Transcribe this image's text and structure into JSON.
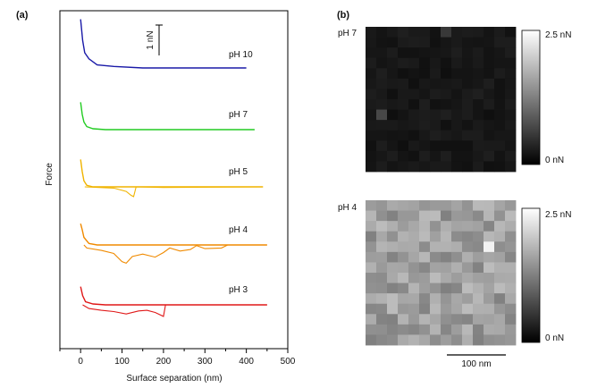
{
  "panel_a": {
    "panel_label": "(a)",
    "scale_bar_label": "1 nN"
  },
  "panel_b": {
    "panel_label": "(b)",
    "scale_bar_label": "100 nm",
    "maps": [
      {
        "label": "pH 7",
        "colorbar_max": "2.5 nN",
        "colorbar_min": "0 nN",
        "mean_level": 0.09,
        "spread": 0.03,
        "bright_pixels": [
          [
            1,
            8,
            0.28
          ],
          [
            7,
            0,
            0.22
          ]
        ]
      },
      {
        "label": "pH 4",
        "colorbar_max": "2.5 nN",
        "colorbar_min": "0 nN",
        "mean_level": 0.62,
        "spread": 0.12,
        "bright_pixels": [
          [
            11,
            4,
            0.95
          ]
        ]
      }
    ]
  },
  "chart_data": {
    "type": "line",
    "title": "",
    "xlabel": "Surface separation (nm)",
    "ylabel": "Force",
    "xlim": [
      -50,
      500
    ],
    "xticks": [
      0,
      100,
      200,
      300,
      400,
      500
    ],
    "yaxis": "offset curves, relative force (scale bar 1 nN)",
    "grid": false,
    "series": [
      {
        "name": "pH 10",
        "color": "#1a1aa8",
        "approach": [
          [
            0,
            1.6
          ],
          [
            5,
            0.9
          ],
          [
            10,
            0.5
          ],
          [
            20,
            0.3
          ],
          [
            40,
            0.1
          ],
          [
            80,
            0.05
          ],
          [
            150,
            0
          ],
          [
            400,
            0
          ]
        ],
        "retract": []
      },
      {
        "name": "pH 7",
        "color": "#22cc22",
        "approach": [
          [
            0,
            0.9
          ],
          [
            4,
            0.5
          ],
          [
            8,
            0.25
          ],
          [
            15,
            0.1
          ],
          [
            30,
            0.03
          ],
          [
            60,
            0
          ],
          [
            420,
            0
          ]
        ],
        "retract": []
      },
      {
        "name": "pH 5",
        "color": "#f0b400",
        "approach": [
          [
            0,
            0.9
          ],
          [
            4,
            0.5
          ],
          [
            8,
            0.2
          ],
          [
            15,
            0.05
          ],
          [
            30,
            0
          ],
          [
            440,
            0
          ]
        ],
        "retract": [
          [
            10,
            0
          ],
          [
            80,
            -0.04
          ],
          [
            110,
            -0.15
          ],
          [
            122,
            -0.28
          ],
          [
            128,
            -0.32
          ],
          [
            134,
            0
          ],
          [
            200,
            -0.02
          ],
          [
            440,
            0
          ]
        ]
      },
      {
        "name": "pH 4",
        "color": "#f08a00",
        "approach": [
          [
            0,
            0.7
          ],
          [
            4,
            0.5
          ],
          [
            8,
            0.25
          ],
          [
            20,
            0.05
          ],
          [
            40,
            0
          ],
          [
            450,
            0
          ]
        ],
        "retract": [
          [
            8,
            0
          ],
          [
            15,
            -0.1
          ],
          [
            50,
            -0.18
          ],
          [
            80,
            -0.28
          ],
          [
            100,
            -0.55
          ],
          [
            110,
            -0.6
          ],
          [
            125,
            -0.38
          ],
          [
            150,
            -0.3
          ],
          [
            180,
            -0.4
          ],
          [
            200,
            -0.25
          ],
          [
            215,
            -0.1
          ],
          [
            240,
            -0.2
          ],
          [
            265,
            -0.15
          ],
          [
            280,
            -0.02
          ],
          [
            300,
            -0.12
          ],
          [
            340,
            -0.1
          ],
          [
            355,
            0
          ],
          [
            450,
            0
          ]
        ]
      },
      {
        "name": "pH 3",
        "color": "#e01818",
        "approach": [
          [
            0,
            0.6
          ],
          [
            5,
            0.3
          ],
          [
            12,
            0.1
          ],
          [
            30,
            0.03
          ],
          [
            60,
            0
          ],
          [
            450,
            0
          ]
        ],
        "retract": [
          [
            5,
            0
          ],
          [
            20,
            -0.12
          ],
          [
            50,
            -0.18
          ],
          [
            80,
            -0.22
          ],
          [
            110,
            -0.3
          ],
          [
            140,
            -0.2
          ],
          [
            160,
            -0.18
          ],
          [
            180,
            -0.25
          ],
          [
            200,
            -0.38
          ],
          [
            205,
            0
          ],
          [
            450,
            0
          ]
        ]
      }
    ]
  }
}
